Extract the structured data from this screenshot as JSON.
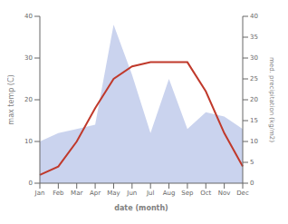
{
  "chart_data": {
    "type": "line",
    "xlabel": "date (month)",
    "ylabel": "max temp (C)",
    "y2label": "med. precipitation (kg/m2)",
    "categories": [
      "Jan",
      "Feb",
      "Mar",
      "Apr",
      "May",
      "Jun",
      "Jul",
      "Aug",
      "Sep",
      "Oct",
      "Nov",
      "Dec"
    ],
    "series": [
      {
        "type": "area",
        "axis": "y2",
        "color": "#b8c4e8",
        "values": [
          10,
          12,
          13,
          14,
          38,
          26,
          12,
          25,
          13,
          17,
          16,
          13
        ]
      },
      {
        "type": "line",
        "color": "#c0392b",
        "values": [
          2,
          4,
          10,
          18,
          25,
          28,
          29,
          29,
          29,
          22,
          12,
          4
        ]
      }
    ],
    "ylim": [
      0,
      40
    ],
    "yticks": [
      0,
      10,
      20,
      30,
      40
    ],
    "y2lim": [
      0,
      40
    ],
    "y2ticks": [
      0,
      5,
      10,
      15,
      20,
      25,
      30,
      35,
      40
    ],
    "grid": false
  }
}
